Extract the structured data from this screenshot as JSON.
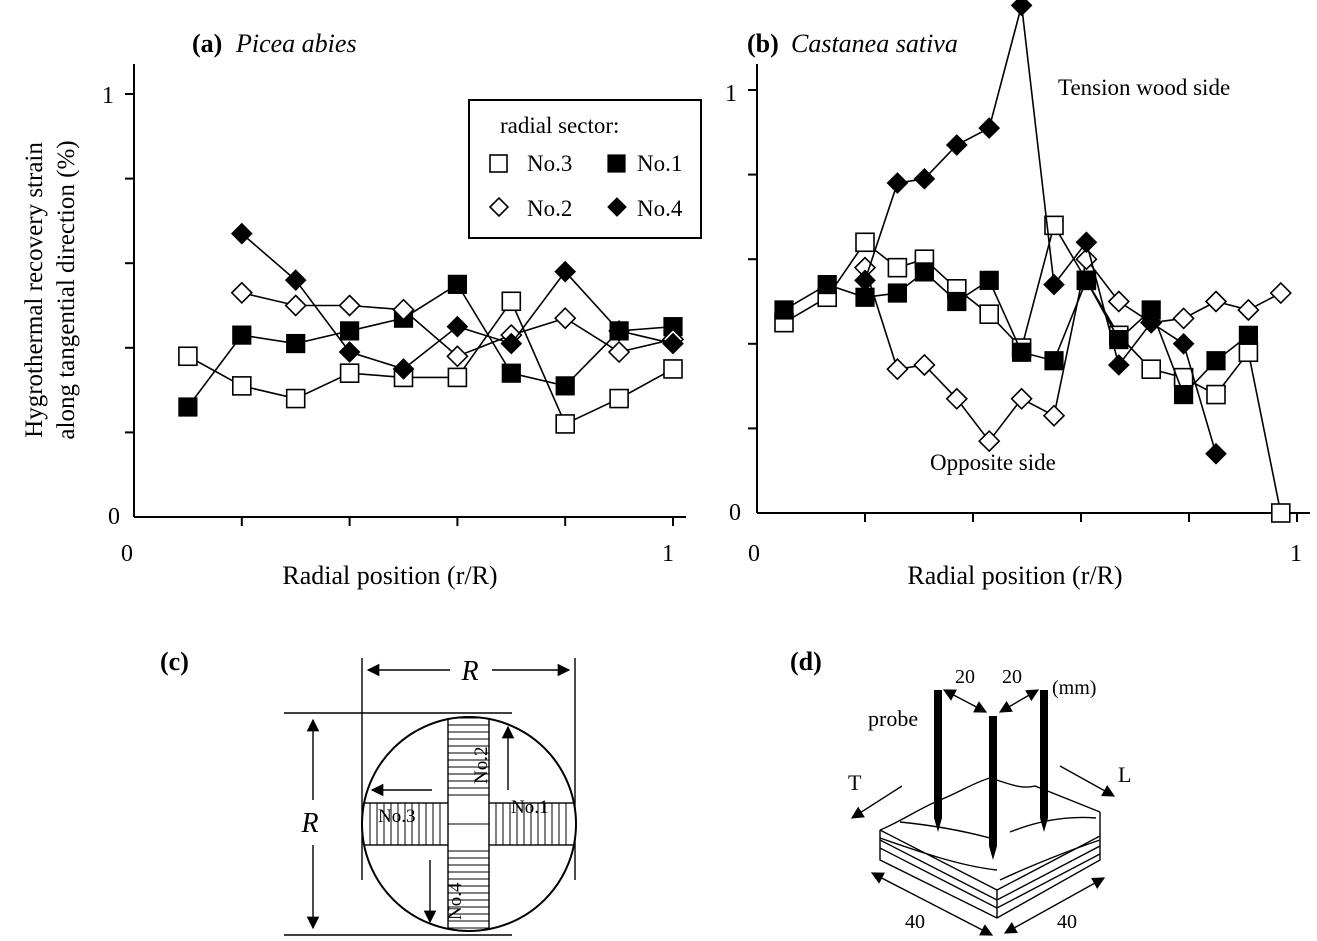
{
  "chart_data": [
    {
      "type": "line",
      "panel_tag": "(a)",
      "title": "Picea abies",
      "xlabel": "Radial position (r/R)",
      "ylabel_line1": "Hygrothermal recovery strain",
      "ylabel_line2": "along tangential direction (%)",
      "xlim": [
        0,
        1
      ],
      "ylim": [
        0,
        1
      ],
      "x_tick_labels": [
        "0",
        "1"
      ],
      "y_tick_labels": [
        "0",
        "1"
      ],
      "legend": {
        "title": "radial sector:",
        "entries": [
          "No.3",
          "No.1",
          "No.2",
          "No.4"
        ]
      },
      "series": [
        {
          "name": "No.3",
          "marker": "open-square",
          "x": [
            0.1,
            0.2,
            0.3,
            0.4,
            0.5,
            0.6,
            0.7,
            0.8,
            0.9,
            1.0
          ],
          "y": [
            0.38,
            0.31,
            0.28,
            0.34,
            0.33,
            0.33,
            0.51,
            0.22,
            0.28,
            0.35
          ]
        },
        {
          "name": "No.1",
          "marker": "filled-square",
          "x": [
            0.1,
            0.2,
            0.3,
            0.4,
            0.5,
            0.6,
            0.7,
            0.8,
            0.9,
            1.0
          ],
          "y": [
            0.26,
            0.43,
            0.41,
            0.44,
            0.47,
            0.55,
            0.34,
            0.31,
            0.44,
            0.45
          ]
        },
        {
          "name": "No.2",
          "marker": "open-diamond",
          "x": [
            0.2,
            0.3,
            0.4,
            0.5,
            0.6,
            0.7,
            0.8,
            0.9,
            1.0
          ],
          "y": [
            0.53,
            0.5,
            0.5,
            0.49,
            0.38,
            0.43,
            0.47,
            0.39,
            0.42
          ]
        },
        {
          "name": "No.4",
          "marker": "filled-diamond",
          "x": [
            0.2,
            0.3,
            0.4,
            0.5,
            0.6,
            0.7,
            0.8,
            0.9,
            1.0
          ],
          "y": [
            0.67,
            0.56,
            0.39,
            0.35,
            0.45,
            0.41,
            0.58,
            0.44,
            0.41
          ]
        }
      ]
    },
    {
      "type": "line",
      "panel_tag": "(b)",
      "title": "Castanea sativa",
      "xlabel": "Radial position (r/R)",
      "xlim": [
        0,
        1
      ],
      "ylim": [
        0,
        1
      ],
      "x_tick_labels": [
        "0",
        "1"
      ],
      "y_tick_labels": [
        "0",
        "1"
      ],
      "annotations": [
        "Tension wood side",
        "Opposite side"
      ],
      "series": [
        {
          "name": "No.3",
          "marker": "open-square",
          "x": [
            0.05,
            0.13,
            0.2,
            0.26,
            0.31,
            0.37,
            0.43,
            0.49,
            0.55,
            0.61,
            0.67,
            0.73,
            0.79,
            0.85,
            0.91,
            0.97
          ],
          "y": [
            0.45,
            0.51,
            0.64,
            0.58,
            0.6,
            0.53,
            0.47,
            0.39,
            0.68,
            0.55,
            0.42,
            0.34,
            0.32,
            0.28,
            0.38,
            0.0
          ]
        },
        {
          "name": "No.1",
          "marker": "filled-square",
          "x": [
            0.05,
            0.13,
            0.2,
            0.26,
            0.31,
            0.37,
            0.43,
            0.49,
            0.55,
            0.61,
            0.67,
            0.73,
            0.79,
            0.85,
            0.91
          ],
          "y": [
            0.48,
            0.54,
            0.51,
            0.52,
            0.57,
            0.5,
            0.55,
            0.38,
            0.36,
            0.55,
            0.41,
            0.48,
            0.28,
            0.36,
            0.42
          ]
        },
        {
          "name": "No.2",
          "marker": "open-diamond",
          "x": [
            0.2,
            0.26,
            0.31,
            0.37,
            0.43,
            0.49,
            0.55,
            0.61,
            0.67,
            0.73,
            0.79,
            0.85,
            0.91,
            0.97
          ],
          "y": [
            0.58,
            0.34,
            0.35,
            0.27,
            0.17,
            0.27,
            0.23,
            0.6,
            0.5,
            0.45,
            0.46,
            0.5,
            0.48,
            0.52
          ]
        },
        {
          "name": "No.4",
          "marker": "filled-diamond",
          "x": [
            0.2,
            0.26,
            0.31,
            0.37,
            0.43,
            0.49,
            0.55,
            0.61,
            0.67,
            0.73,
            0.79,
            0.85
          ],
          "y": [
            0.55,
            0.78,
            0.79,
            0.87,
            0.91,
            1.2,
            0.54,
            0.64,
            0.35,
            0.45,
            0.4,
            0.14
          ]
        }
      ]
    }
  ],
  "diagram_c": {
    "tag": "(c)",
    "dimension_label_top": "R",
    "dimension_label_left": "R",
    "sector_labels": [
      "No.1",
      "No.2",
      "No.3",
      "No.4"
    ]
  },
  "diagram_d": {
    "tag": "(d)",
    "spacing_1": "20",
    "spacing_2": "20",
    "unit": "(mm)",
    "probe_label": "probe",
    "axis_t": "T",
    "axis_l": "L",
    "width_1": "40",
    "width_2": "40"
  }
}
